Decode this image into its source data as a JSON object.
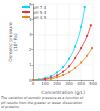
{
  "chart_data": {
    "type": "line",
    "xlabel": "Concentration (g/L)",
    "ylabel": "Osmotic pressure\n(10⁴ Pa)",
    "caption": "The variation of osmotic pressure as a function of\npH results from the greater or lesser dissociation\nof proteins.",
    "xlim": [
      0,
      500
    ],
    "ylim": [
      0,
      5
    ],
    "xticks": [
      0,
      100,
      200,
      300,
      400,
      500
    ],
    "yticks": [
      0,
      1,
      2,
      3,
      4,
      5
    ],
    "grid": true,
    "legend": "upper left",
    "marker": "square",
    "series": [
      {
        "name": "pH 7.4",
        "color": "#00d4ff",
        "x": [
          0,
          50,
          100,
          150,
          200,
          250,
          300,
          350,
          400,
          430
        ],
        "values": [
          0,
          0.04,
          0.12,
          0.25,
          0.5,
          0.85,
          1.4,
          2.2,
          3.5,
          4.8
        ]
      },
      {
        "name": "pH 5.4",
        "color": "#e03535",
        "x": [
          0,
          100,
          150,
          200,
          250,
          300,
          350,
          400,
          450,
          480
        ],
        "values": [
          0,
          0.07,
          0.15,
          0.3,
          0.55,
          0.9,
          1.45,
          2.1,
          2.9,
          3.6
        ]
      },
      {
        "name": "pH 4.5",
        "color": "#e08820",
        "x": [
          0,
          150,
          200,
          250,
          300,
          350,
          400,
          450,
          490
        ],
        "values": [
          0,
          0.08,
          0.18,
          0.32,
          0.52,
          0.8,
          1.15,
          1.6,
          2.1
        ]
      }
    ]
  }
}
